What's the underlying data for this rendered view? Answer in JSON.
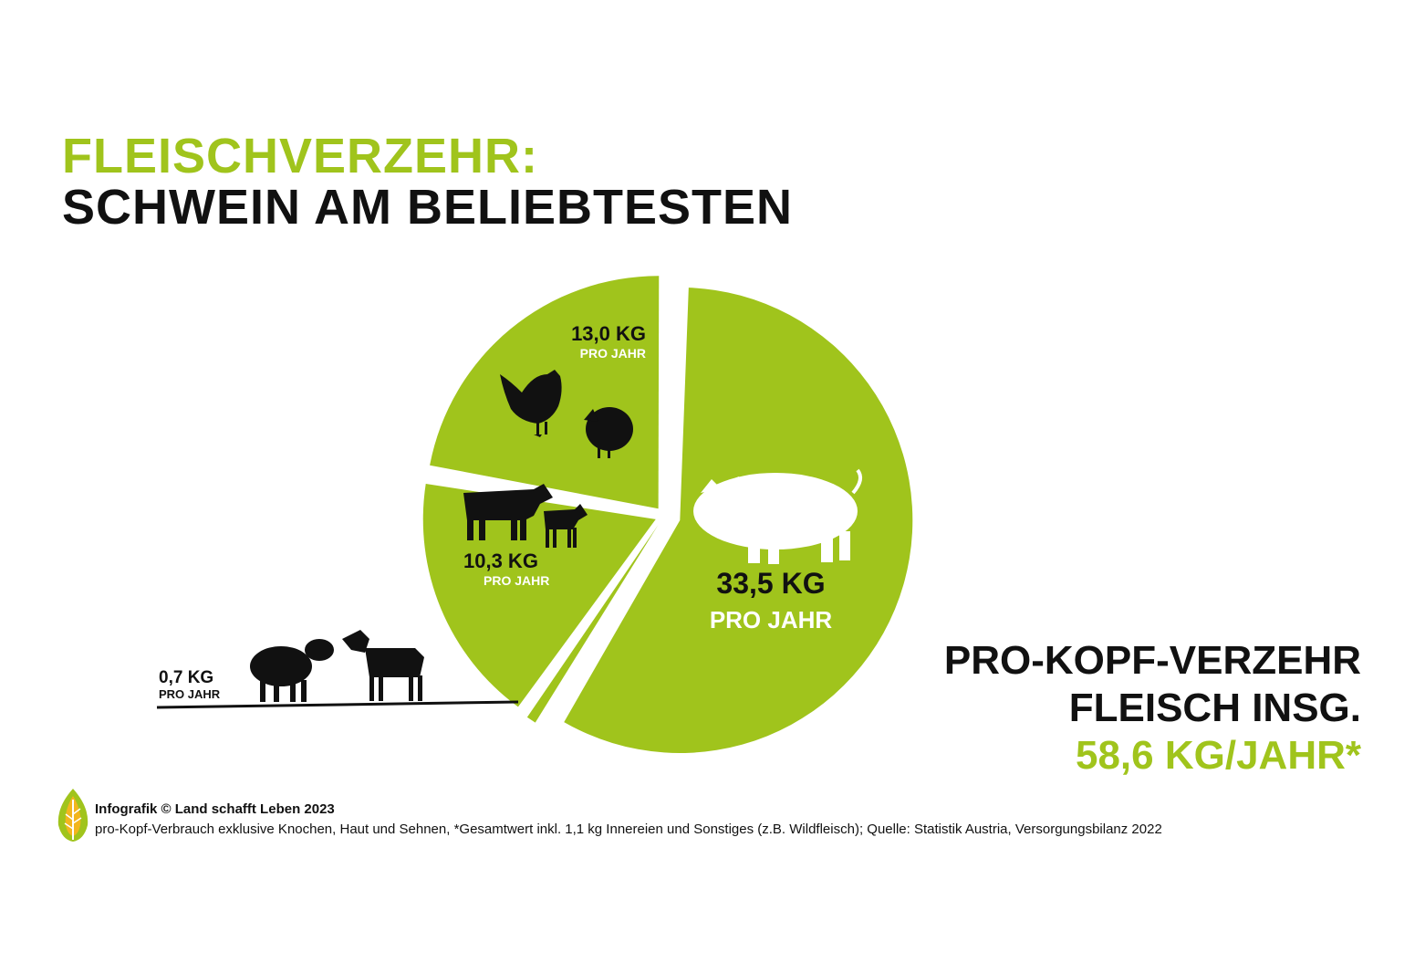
{
  "title": {
    "line1": "FLEISCHVERZEHR:",
    "line2": "SCHWEIN AM BELIEBTESTEN"
  },
  "colors": {
    "accent": "#a0c41c",
    "text": "#111111",
    "background": "#ffffff"
  },
  "chart_data": {
    "type": "pie",
    "unit_label": "PRO JAHR",
    "slices": [
      {
        "value_label": "33,5 KG",
        "value": 33.5,
        "icon": "pig-icon"
      },
      {
        "value_label": "0,7 KG",
        "value": 0.7,
        "icon": "sheep-and-goat-icon"
      },
      {
        "value_label": "10,3 KG",
        "value": 10.3,
        "icon": "cow-and-calf-icon"
      },
      {
        "value_label": "13,0 KG",
        "value": 13.0,
        "icon": "chicken-and-turkey-icon"
      }
    ]
  },
  "total": {
    "line1": "PRO-KOPF-VERZEHR",
    "line2": "FLEISCH INSG.",
    "line3": "58,6 KG/JAHR*"
  },
  "footer": {
    "credit": "Infografik © Land schafft Leben 2023",
    "note": "pro-Kopf-Verbrauch exklusive Knochen, Haut und Sehnen, *Gesamtwert inkl. 1,1 kg Innereien und Sonstiges (z.B. Wildfleisch); Quelle: Statistik Austria, Versorgungsbilanz 2022",
    "logo_icon": "leaf-logo-icon"
  }
}
